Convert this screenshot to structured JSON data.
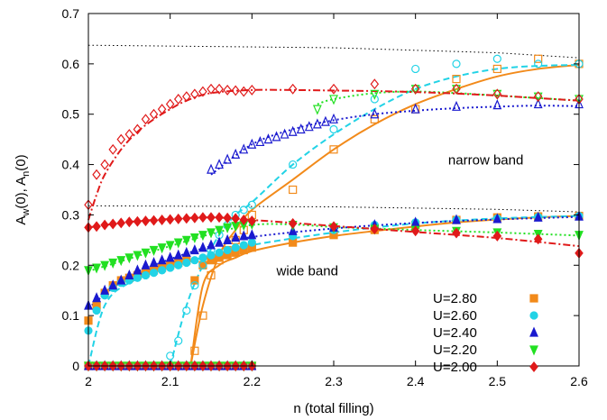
{
  "chart_data": {
    "type": "scatter",
    "xlabel": "n (total filling)",
    "ylabel": "A_w(0), A_n(0)",
    "ylabel_parts": {
      "a": "A",
      "a_sub": "w",
      "mid": "(0), A",
      "b_sub": "n",
      "end": "(0)"
    },
    "xlim": [
      2.0,
      2.6
    ],
    "ylim": [
      0,
      0.7
    ],
    "x_ticks": [
      2.0,
      2.1,
      2.2,
      2.3,
      2.4,
      2.5,
      2.6
    ],
    "x_tick_labels": [
      "2",
      "2.1",
      "2.2",
      "2.3",
      "2.4",
      "2.5",
      "2.6"
    ],
    "y_ticks": [
      0,
      0.1,
      0.2,
      0.3,
      0.4,
      0.5,
      0.6,
      0.7
    ],
    "y_tick_labels": [
      "0",
      "0.1",
      "0.2",
      "0.3",
      "0.4",
      "0.5",
      "0.6",
      "0.7"
    ],
    "grid": false,
    "legend_position": "bottom-right",
    "annotations": [
      {
        "text": "narrow band",
        "x": 2.44,
        "y": 0.4
      },
      {
        "text": "wide band",
        "x": 2.23,
        "y": 0.18
      }
    ],
    "reference_curves": [
      {
        "style": "dotted",
        "color": "#000000",
        "x": [
          2.0,
          2.3,
          2.5,
          2.6
        ],
        "y": [
          0.637,
          0.632,
          0.622,
          0.612
        ]
      },
      {
        "style": "dotted",
        "color": "#000000",
        "x": [
          2.0,
          2.3,
          2.5,
          2.6
        ],
        "y": [
          0.318,
          0.316,
          0.311,
          0.306
        ]
      }
    ],
    "series": [
      {
        "name": "U=2.80",
        "color": "#f28a1a",
        "marker": "square",
        "line_style": "solid",
        "wide_x": [
          2.0,
          2.13,
          2.14,
          2.15,
          2.16,
          2.17,
          2.18,
          2.19,
          2.2,
          2.25,
          2.3,
          2.35,
          2.4,
          2.45,
          2.5,
          2.55,
          2.6
        ],
        "wide_y": [
          0.0,
          0.17,
          0.2,
          0.21,
          0.215,
          0.22,
          0.225,
          0.23,
          0.235,
          0.245,
          0.26,
          0.27,
          0.28,
          0.29,
          0.295,
          0.297,
          0.298
        ],
        "wide_curve_x": [
          2.125,
          2.14,
          2.16,
          2.18,
          2.2,
          2.25,
          2.3,
          2.35,
          2.4,
          2.45,
          2.5,
          2.55,
          2.6
        ],
        "wide_curve_y": [
          0.0,
          0.16,
          0.2,
          0.215,
          0.228,
          0.245,
          0.258,
          0.268,
          0.277,
          0.285,
          0.291,
          0.295,
          0.298
        ],
        "wide_x2": [
          2.0,
          2.01,
          2.02,
          2.03,
          2.04,
          2.05,
          2.06,
          2.07,
          2.08,
          2.09,
          2.1,
          2.11,
          2.12
        ],
        "wide_y2": [
          0.09,
          0.12,
          0.145,
          0.16,
          0.17,
          0.175,
          0.18,
          0.185,
          0.19,
          0.195,
          0.2,
          0.205,
          0.21
        ],
        "narrow_x": [
          2.13,
          2.14,
          2.15,
          2.16,
          2.17,
          2.18,
          2.19,
          2.2,
          2.25,
          2.3,
          2.35,
          2.4,
          2.45,
          2.5,
          2.55,
          2.6
        ],
        "narrow_y": [
          0.03,
          0.1,
          0.18,
          0.21,
          0.23,
          0.25,
          0.27,
          0.3,
          0.35,
          0.43,
          0.49,
          0.51,
          0.57,
          0.59,
          0.61,
          0.6
        ],
        "narrow_curve_x": [
          2.125,
          2.14,
          2.16,
          2.18,
          2.2,
          2.25,
          2.3,
          2.35,
          2.4,
          2.45,
          2.5,
          2.55,
          2.6
        ],
        "narrow_curve_y": [
          0.0,
          0.12,
          0.22,
          0.27,
          0.31,
          0.37,
          0.43,
          0.48,
          0.52,
          0.55,
          0.575,
          0.59,
          0.598
        ]
      },
      {
        "name": "U=2.60",
        "color": "#22d3e6",
        "marker": "circle",
        "line_style": "dashed",
        "wide_x": [
          2.0,
          2.01,
          2.02,
          2.03,
          2.04,
          2.05,
          2.06,
          2.07,
          2.08,
          2.09,
          2.1,
          2.11,
          2.12,
          2.13,
          2.14,
          2.15,
          2.16,
          2.17,
          2.18,
          2.19,
          2.2,
          2.25,
          2.3,
          2.35,
          2.4,
          2.45,
          2.5,
          2.55,
          2.6
        ],
        "wide_y": [
          0.07,
          0.11,
          0.14,
          0.155,
          0.165,
          0.17,
          0.175,
          0.18,
          0.185,
          0.19,
          0.195,
          0.2,
          0.205,
          0.21,
          0.215,
          0.22,
          0.225,
          0.23,
          0.235,
          0.24,
          0.245,
          0.258,
          0.27,
          0.28,
          0.285,
          0.29,
          0.293,
          0.296,
          0.298
        ],
        "wide_curve_x": [
          2.0,
          2.02,
          2.05,
          2.1,
          2.15,
          2.2,
          2.3,
          2.4,
          2.5,
          2.6
        ],
        "wide_curve_y": [
          0.0,
          0.12,
          0.165,
          0.195,
          0.22,
          0.24,
          0.265,
          0.283,
          0.293,
          0.298
        ],
        "narrow_x": [
          2.1,
          2.11,
          2.12,
          2.13,
          2.14,
          2.15,
          2.16,
          2.17,
          2.18,
          2.19,
          2.2,
          2.25,
          2.3,
          2.35,
          2.4,
          2.45,
          2.5,
          2.55,
          2.6
        ],
        "narrow_y": [
          0.02,
          0.05,
          0.11,
          0.16,
          0.2,
          0.23,
          0.26,
          0.28,
          0.3,
          0.31,
          0.32,
          0.4,
          0.47,
          0.53,
          0.59,
          0.6,
          0.61,
          0.6,
          0.6
        ],
        "narrow_curve_x": [
          2.1,
          2.12,
          2.14,
          2.16,
          2.18,
          2.2,
          2.25,
          2.3,
          2.35,
          2.4,
          2.45,
          2.5,
          2.55,
          2.6
        ],
        "narrow_curve_y": [
          0.0,
          0.12,
          0.2,
          0.26,
          0.3,
          0.325,
          0.4,
          0.46,
          0.51,
          0.55,
          0.575,
          0.59,
          0.596,
          0.598
        ]
      },
      {
        "name": "U=2.40",
        "color": "#1a1acf",
        "marker": "triangle-up",
        "line_style": "dotted",
        "wide_x": [
          2.0,
          2.01,
          2.02,
          2.03,
          2.04,
          2.05,
          2.06,
          2.07,
          2.08,
          2.09,
          2.1,
          2.11,
          2.12,
          2.13,
          2.14,
          2.15,
          2.16,
          2.17,
          2.18,
          2.19,
          2.2,
          2.25,
          2.3,
          2.35,
          2.4,
          2.45,
          2.5,
          2.55,
          2.6
        ],
        "wide_y": [
          0.12,
          0.135,
          0.15,
          0.16,
          0.17,
          0.18,
          0.19,
          0.2,
          0.205,
          0.21,
          0.215,
          0.22,
          0.225,
          0.23,
          0.235,
          0.24,
          0.245,
          0.25,
          0.255,
          0.258,
          0.26,
          0.268,
          0.275,
          0.28,
          0.285,
          0.29,
          0.292,
          0.295,
          0.297
        ],
        "wide_curve_x": [
          2.0,
          2.05,
          2.1,
          2.15,
          2.2,
          2.3,
          2.4,
          2.5,
          2.6
        ],
        "wide_curve_y": [
          0.115,
          0.178,
          0.212,
          0.238,
          0.256,
          0.273,
          0.284,
          0.291,
          0.296
        ],
        "narrow_x": [
          2.15,
          2.16,
          2.17,
          2.18,
          2.19,
          2.2,
          2.21,
          2.22,
          2.23,
          2.24,
          2.25,
          2.26,
          2.27,
          2.28,
          2.29,
          2.3,
          2.35,
          2.4,
          2.45,
          2.5,
          2.55,
          2.6
        ],
        "narrow_y": [
          0.39,
          0.4,
          0.41,
          0.42,
          0.43,
          0.44,
          0.445,
          0.45,
          0.455,
          0.46,
          0.465,
          0.47,
          0.475,
          0.48,
          0.485,
          0.49,
          0.5,
          0.51,
          0.515,
          0.518,
          0.52,
          0.52
        ],
        "narrow_curve_x": [
          2.15,
          2.2,
          2.25,
          2.3,
          2.35,
          2.4,
          2.45,
          2.5,
          2.55,
          2.6
        ],
        "narrow_curve_y": [
          0.38,
          0.44,
          0.47,
          0.488,
          0.5,
          0.507,
          0.512,
          0.515,
          0.517,
          0.516
        ]
      },
      {
        "name": "U=2.20",
        "color": "#22e022",
        "marker": "triangle-down",
        "line_style": "dotted",
        "wide_x": [
          2.0,
          2.01,
          2.02,
          2.03,
          2.04,
          2.05,
          2.06,
          2.07,
          2.08,
          2.09,
          2.1,
          2.11,
          2.12,
          2.13,
          2.14,
          2.15,
          2.16,
          2.17,
          2.18,
          2.19,
          2.2,
          2.25,
          2.3,
          2.35,
          2.4,
          2.45,
          2.5,
          2.55,
          2.6
        ],
        "wide_y": [
          0.19,
          0.195,
          0.2,
          0.205,
          0.21,
          0.215,
          0.22,
          0.225,
          0.23,
          0.235,
          0.24,
          0.245,
          0.25,
          0.255,
          0.26,
          0.265,
          0.27,
          0.275,
          0.278,
          0.28,
          0.282,
          0.28,
          0.275,
          0.272,
          0.27,
          0.268,
          0.265,
          0.262,
          0.26
        ],
        "wide_curve_x": [
          2.0,
          2.05,
          2.1,
          2.15,
          2.2,
          2.25,
          2.3,
          2.4,
          2.5,
          2.6
        ],
        "wide_curve_y": [
          0.188,
          0.213,
          0.238,
          0.262,
          0.28,
          0.281,
          0.276,
          0.27,
          0.265,
          0.259
        ],
        "narrow_x": [
          2.28,
          2.3,
          2.35,
          2.4,
          2.45,
          2.5,
          2.55,
          2.6
        ],
        "narrow_y": [
          0.51,
          0.53,
          0.54,
          0.55,
          0.55,
          0.54,
          0.535,
          0.53
        ],
        "narrow_curve_x": [
          2.28,
          2.3,
          2.35,
          2.4,
          2.45,
          2.5,
          2.55,
          2.6
        ],
        "narrow_curve_y": [
          0.52,
          0.53,
          0.542,
          0.545,
          0.542,
          0.537,
          0.532,
          0.527
        ]
      },
      {
        "name": "U=2.00",
        "color": "#e01a1a",
        "marker": "diamond",
        "line_style": "dash-dot",
        "wide_x": [
          2.0,
          2.01,
          2.02,
          2.03,
          2.04,
          2.05,
          2.06,
          2.07,
          2.08,
          2.09,
          2.1,
          2.11,
          2.12,
          2.13,
          2.14,
          2.15,
          2.16,
          2.17,
          2.18,
          2.19,
          2.2,
          2.25,
          2.3,
          2.35,
          2.4,
          2.45,
          2.5,
          2.55,
          2.6
        ],
        "wide_y": [
          0.275,
          0.277,
          0.28,
          0.282,
          0.284,
          0.286,
          0.287,
          0.288,
          0.289,
          0.29,
          0.291,
          0.292,
          0.293,
          0.294,
          0.295,
          0.295,
          0.295,
          0.294,
          0.293,
          0.29,
          0.288,
          0.283,
          0.277,
          0.272,
          0.268,
          0.264,
          0.258,
          0.252,
          0.224
        ],
        "wide_curve_x": [
          2.0,
          2.05,
          2.1,
          2.15,
          2.2,
          2.3,
          2.4,
          2.5,
          2.6
        ],
        "wide_curve_y": [
          0.275,
          0.286,
          0.292,
          0.295,
          0.29,
          0.278,
          0.266,
          0.254,
          0.238
        ],
        "narrow_x": [
          2.0,
          2.01,
          2.02,
          2.03,
          2.04,
          2.05,
          2.06,
          2.07,
          2.08,
          2.09,
          2.1,
          2.11,
          2.12,
          2.13,
          2.14,
          2.15,
          2.16,
          2.17,
          2.18,
          2.19,
          2.2,
          2.25,
          2.3,
          2.35,
          2.4,
          2.45,
          2.5,
          2.55,
          2.6
        ],
        "narrow_y": [
          0.32,
          0.38,
          0.4,
          0.43,
          0.45,
          0.46,
          0.47,
          0.49,
          0.5,
          0.51,
          0.52,
          0.53,
          0.535,
          0.54,
          0.545,
          0.55,
          0.55,
          0.548,
          0.547,
          0.545,
          0.548,
          0.55,
          0.55,
          0.56,
          0.55,
          0.55,
          0.54,
          0.535,
          0.53
        ],
        "narrow_curve_x": [
          2.0,
          2.01,
          2.02,
          2.04,
          2.06,
          2.08,
          2.1,
          2.12,
          2.15,
          2.2,
          2.25,
          2.3,
          2.35,
          2.4,
          2.45,
          2.5,
          2.55,
          2.6
        ],
        "narrow_curve_y": [
          0.29,
          0.34,
          0.38,
          0.43,
          0.465,
          0.49,
          0.51,
          0.527,
          0.542,
          0.548,
          0.548,
          0.547,
          0.546,
          0.544,
          0.541,
          0.537,
          0.532,
          0.527
        ]
      }
    ],
    "zero_series": {
      "note_series_order": [
        0,
        1,
        2,
        3,
        4
      ],
      "x_start": 2.0,
      "x_end": 2.2
    }
  }
}
